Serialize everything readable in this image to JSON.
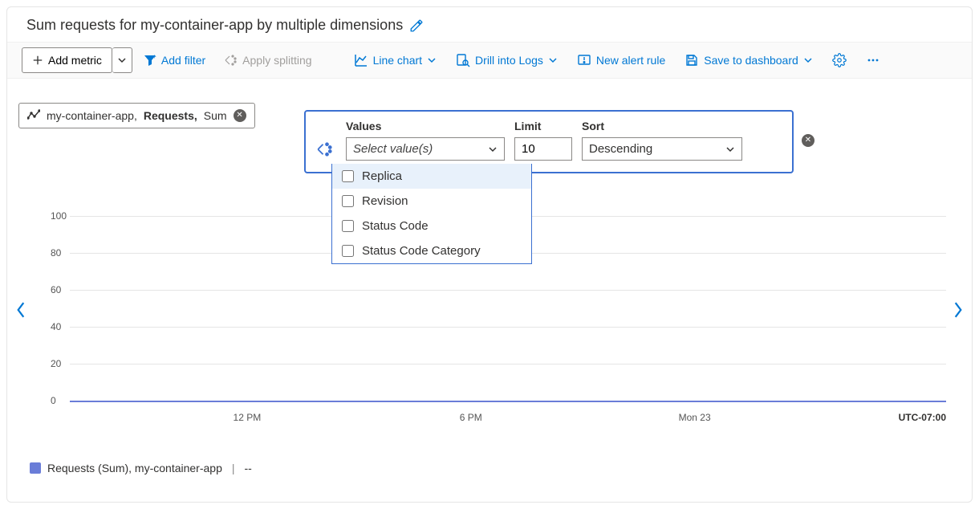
{
  "title": "Sum requests for my-container-app by multiple dimensions",
  "toolbar": {
    "add_metric": "Add metric",
    "add_filter": "Add filter",
    "apply_splitting": "Apply splitting",
    "line_chart": "Line chart",
    "drill_logs": "Drill into Logs",
    "new_alert": "New alert rule",
    "save_dashboard": "Save to dashboard"
  },
  "metric_pill": {
    "resource": "my-container-app,",
    "metric": "Requests,",
    "aggregation": "Sum"
  },
  "split_panel": {
    "values_label": "Values",
    "values_placeholder": "Select value(s)",
    "limit_label": "Limit",
    "limit_value": "10",
    "sort_label": "Sort",
    "sort_value": "Descending",
    "options": [
      "Replica",
      "Revision",
      "Status Code",
      "Status Code Category"
    ]
  },
  "chart": {
    "type": "line",
    "ylim": [
      0,
      100
    ],
    "ytick_step": 20,
    "y_ticks": [
      0,
      20,
      40,
      60,
      80,
      100
    ],
    "x_ticks": [
      "12 PM",
      "6 PM",
      "Mon 23"
    ],
    "x_tick_positions_pct": [
      24,
      48,
      72
    ],
    "tz": "UTC-07:00",
    "series_color": "#6a7dd8",
    "grid_color": "#e5e5e5",
    "background_color": "#ffffff"
  },
  "legend": {
    "label": "Requests (Sum), my-container-app",
    "value": "--",
    "swatch_color": "#6a7dd8"
  },
  "colors": {
    "accent": "#0078d4",
    "panel_border": "#3b70d1"
  }
}
